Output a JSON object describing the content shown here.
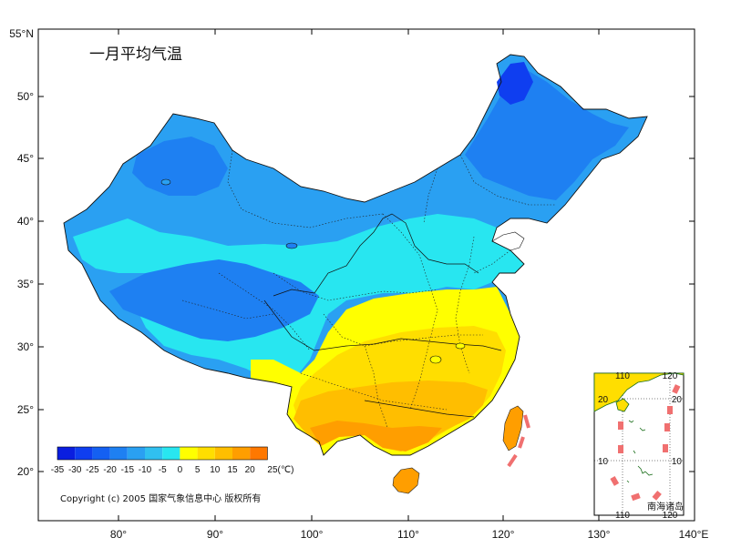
{
  "title": "一月平均气温",
  "copyright": "Copyright (c) 2005 国家气象信息中心 版权所有",
  "axes": {
    "x_ticks": [
      "80°",
      "90°",
      "100°",
      "110°",
      "120°",
      "130°",
      "140°E"
    ],
    "y_ticks": [
      "55°N",
      "50°",
      "45°",
      "40°",
      "35°",
      "30°",
      "25°",
      "20°"
    ]
  },
  "legend": {
    "labels": [
      "-35",
      "-30",
      "-25",
      "-20",
      "-15",
      "-10",
      "-5",
      "0",
      "5",
      "10",
      "15",
      "20",
      "25(℃)"
    ],
    "colors": [
      "#0a1ee0",
      "#0f3ef0",
      "#1460f2",
      "#1e80f2",
      "#2aa0f2",
      "#30c0f0",
      "#28e6f0",
      "#ffff00",
      "#ffde00",
      "#ffbe00",
      "#ff9e00",
      "#ff7800",
      "#ff5000"
    ]
  },
  "inset": {
    "label": "南海诸岛",
    "top_ticks": [
      "110",
      "120"
    ],
    "bottom_ticks": [
      "110",
      "120"
    ],
    "left_ticks": [
      "20",
      "10"
    ],
    "right_ticks": [
      "20",
      "10"
    ]
  }
}
